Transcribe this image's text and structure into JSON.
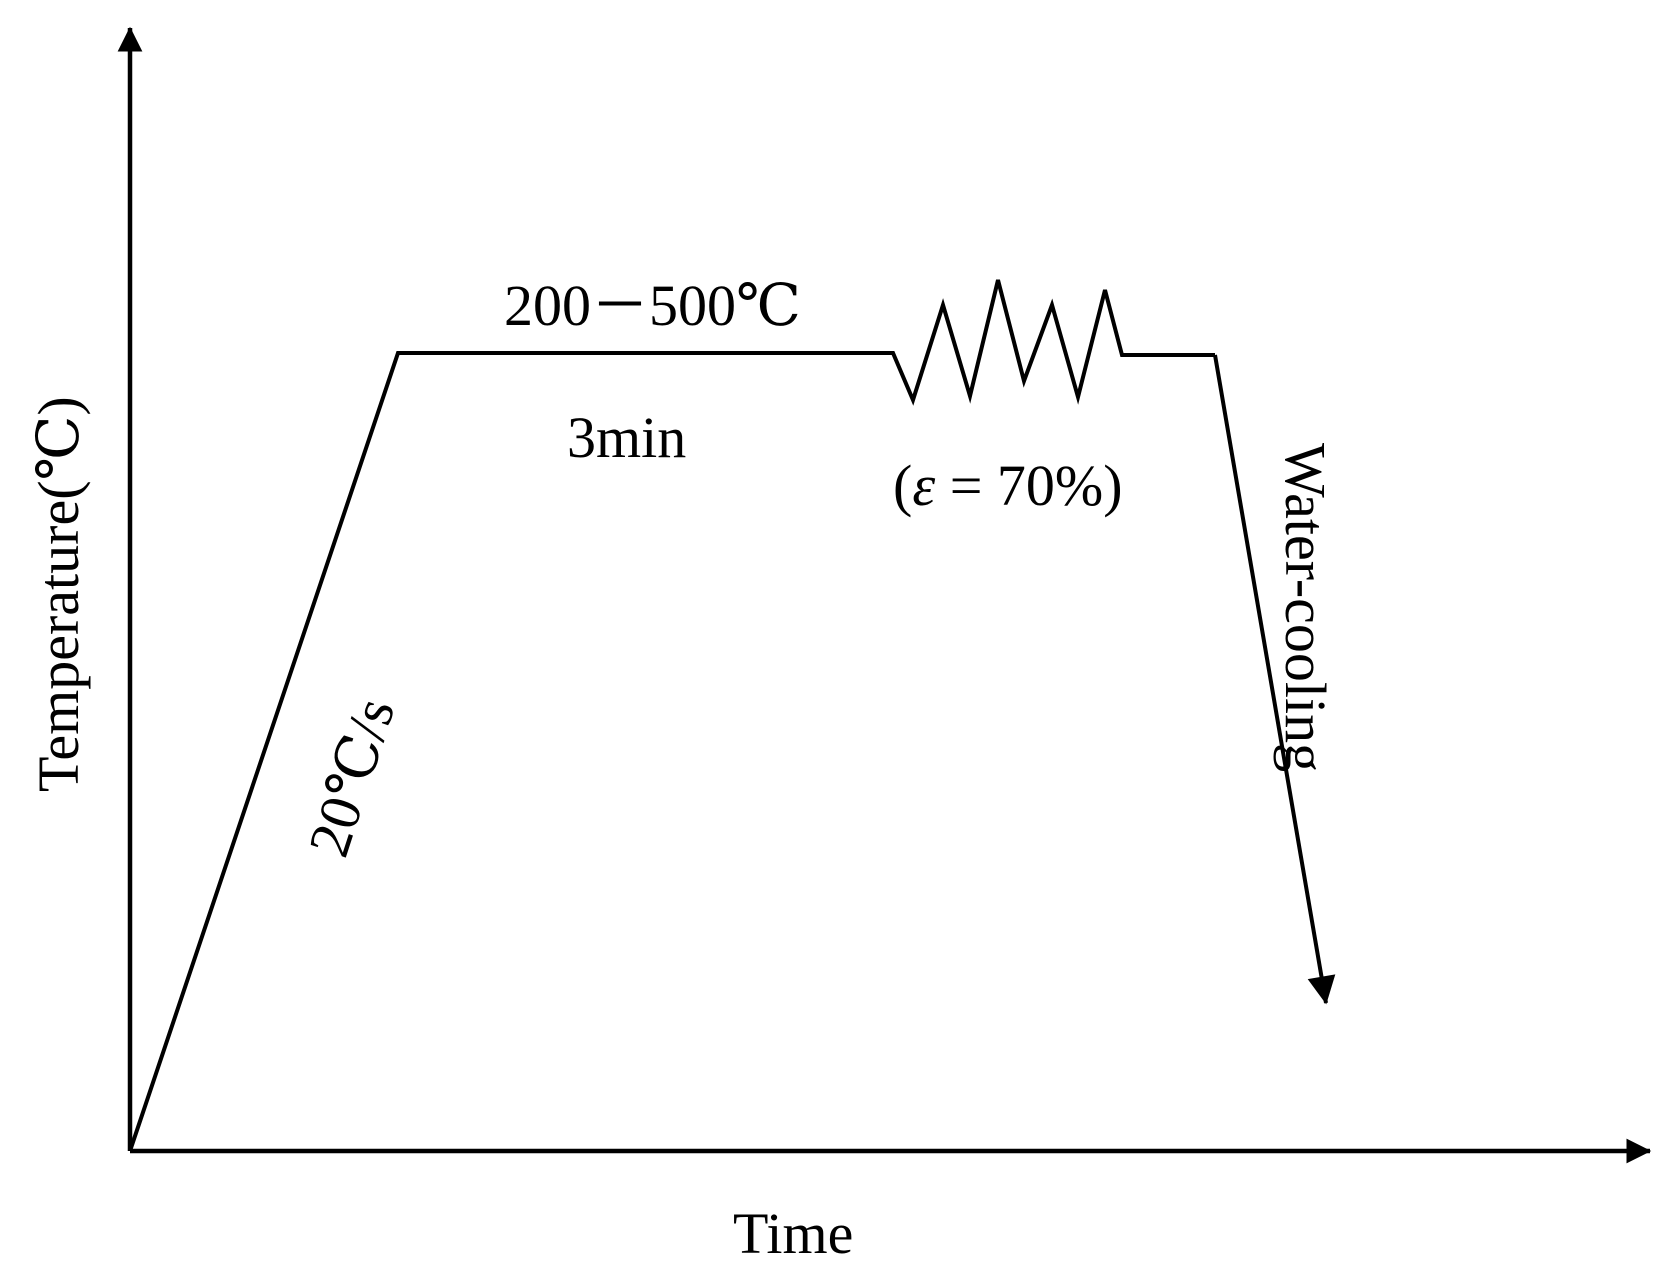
{
  "diagram": {
    "axis_y_label": "Temperature(℃)",
    "axis_x_label": "Time",
    "temperature_label": "200－500℃",
    "hold_time_label": "3min",
    "heating_rate_label": "20℃/s",
    "strain_label_open": "(",
    "strain_label_epsilon": "ε",
    "strain_label_rest": " = 70%",
    "strain_label_close": ")",
    "cooling_label": "Water-cooling",
    "line_color": "#000000",
    "background_color": "#ffffff"
  }
}
